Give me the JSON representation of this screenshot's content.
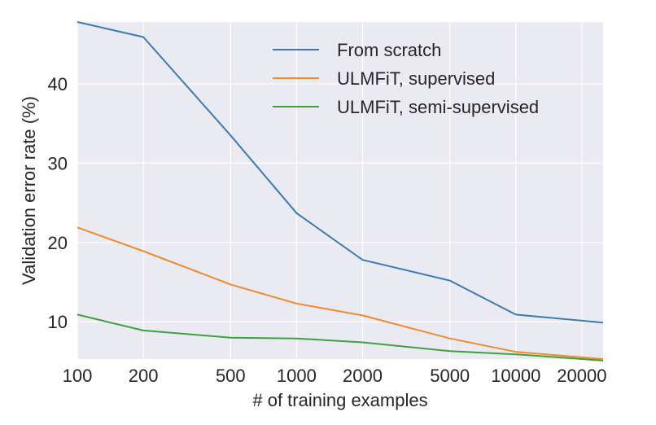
{
  "chart_data": {
    "type": "line",
    "title": "",
    "xlabel": "# of training examples",
    "ylabel": "Validation error rate (%)",
    "xscale": "log",
    "x": [
      100,
      200,
      500,
      1000,
      2000,
      5000,
      10000,
      25000
    ],
    "xticks": [
      100,
      200,
      500,
      1000,
      2000,
      5000,
      10000,
      20000
    ],
    "xtick_labels": [
      "100",
      "200",
      "500",
      "1000",
      "2000",
      "5000",
      "10000",
      "20000"
    ],
    "xlim": [
      100,
      25000
    ],
    "yticks": [
      10,
      20,
      30,
      40
    ],
    "ytick_labels": [
      "10",
      "20",
      "30",
      "40"
    ],
    "ylim": [
      5.3,
      47.8
    ],
    "grid": true,
    "legend_position": "top-right",
    "series": [
      {
        "name": "From scratch",
        "color": "#3a7ab7",
        "values": [
          47.8,
          45.9,
          33.5,
          23.7,
          17.8,
          15.2,
          10.9,
          9.9
        ]
      },
      {
        "name": "ULMFiT, supervised",
        "color": "#f08a30",
        "values": [
          21.9,
          18.9,
          14.7,
          12.3,
          10.8,
          7.9,
          6.2,
          5.3
        ]
      },
      {
        "name": "ULMFiT, semi-supervised",
        "color": "#3ba33a",
        "values": [
          10.9,
          8.9,
          8.0,
          7.9,
          7.4,
          6.3,
          5.9,
          5.1
        ]
      }
    ]
  }
}
